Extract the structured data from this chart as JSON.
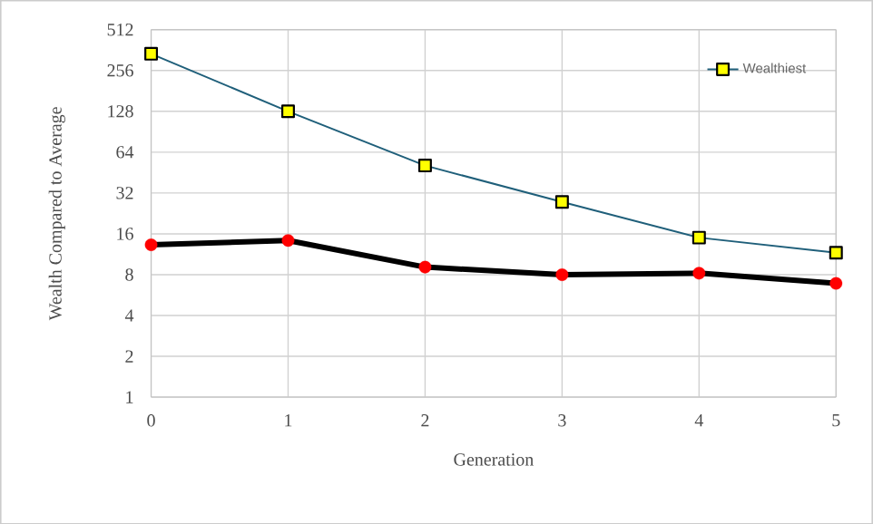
{
  "chart_data": {
    "type": "line",
    "xlabel": "Generation",
    "ylabel": "Wealth Compared to Average",
    "x": [
      0,
      1,
      2,
      3,
      4,
      5
    ],
    "series": [
      {
        "name": "Wealthiest",
        "color": "#1f5f7a",
        "colors": [
          "#ffff00",
          "#ffff00",
          "#ffff00",
          "#ffff00",
          "#ffff00",
          "#ffff00"
        ],
        "marker": "square",
        "values": [
          340,
          128,
          51,
          27.5,
          15,
          11.6
        ]
      },
      {
        "color": "#000000",
        "colors": [
          "#ff0000",
          "#ff0000",
          "#ff0000",
          "#ff0000",
          "#ff0000",
          "#ff0000"
        ],
        "marker": "circle",
        "values": [
          13.3,
          14.3,
          9.1,
          8,
          8.2,
          6.9
        ]
      }
    ],
    "log": "y",
    "xlim": [
      0,
      5
    ],
    "ylim": [
      1,
      512
    ],
    "xticks": [
      0,
      1,
      2,
      3,
      4,
      5
    ],
    "yticks": [
      1,
      2,
      4,
      8,
      16,
      32,
      64,
      128,
      256,
      512
    ],
    "grid": true,
    "legend": "top right",
    "line_style": "solid"
  }
}
